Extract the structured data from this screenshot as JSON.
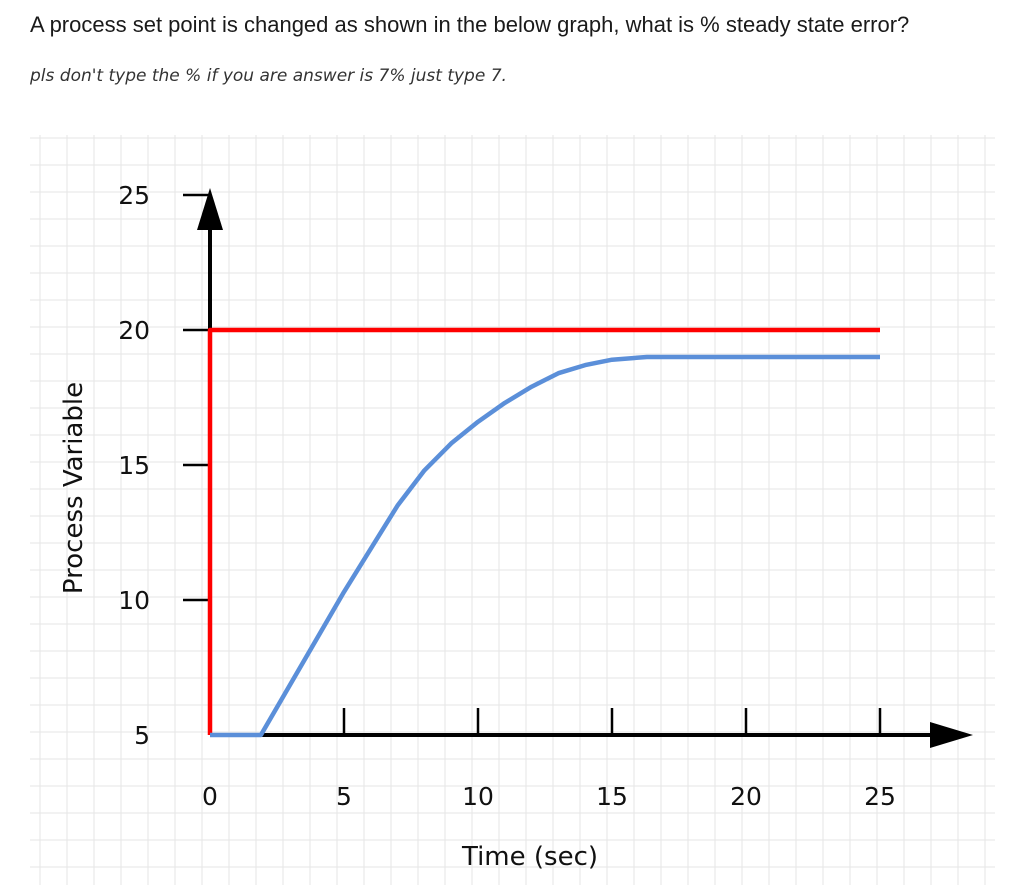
{
  "question": {
    "text": "A process set point is changed as shown in the below graph, what is % steady state error?",
    "hint": "pls don't type the % if you are answer is 7% just type 7."
  },
  "chart_data": {
    "type": "line",
    "xlabel": "Time  (sec)",
    "ylabel": "Process Variable",
    "xlim": [
      0,
      25
    ],
    "ylim": [
      5,
      25
    ],
    "x_ticks": [
      0,
      5,
      10,
      15,
      20,
      25
    ],
    "y_ticks": [
      5,
      10,
      15,
      20,
      25
    ],
    "grid": true,
    "series": [
      {
        "color": "#ff0000",
        "points": [
          [
            0,
            5
          ],
          [
            0,
            20
          ],
          [
            25,
            20
          ]
        ]
      },
      {
        "color": "#5b8fd9",
        "points": [
          [
            0,
            5
          ],
          [
            1.9,
            5
          ],
          [
            5,
            10.3
          ],
          [
            7,
            13.5
          ],
          [
            8,
            14.8
          ],
          [
            9,
            15.8
          ],
          [
            10,
            16.6
          ],
          [
            11,
            17.3
          ],
          [
            12,
            17.9
          ],
          [
            13,
            18.4
          ],
          [
            14,
            18.7
          ],
          [
            15,
            18.9
          ],
          [
            16.3,
            19
          ],
          [
            25,
            19
          ]
        ]
      }
    ]
  }
}
